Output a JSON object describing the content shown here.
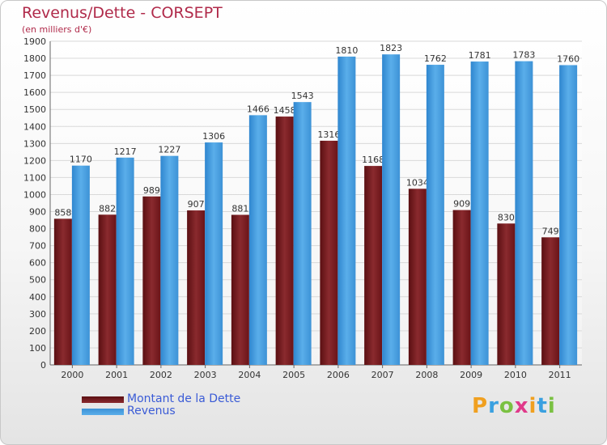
{
  "header": {
    "title": "Revenus/Dette - CORSEPT",
    "subtitle": "(en milliers d'€)"
  },
  "logo": {
    "letters": [
      "P",
      "r",
      "o",
      "x",
      "i",
      "t",
      "i"
    ],
    "colors": [
      "#f0a020",
      "#3aa0e0",
      "#7ac142",
      "#e03a8a",
      "#f0a020",
      "#3aa0e0",
      "#7ac142"
    ]
  },
  "chart_data": {
    "type": "bar",
    "title": "Revenus/Dette - CORSEPT",
    "subtitle": "(en milliers d'€)",
    "categories": [
      "2000",
      "2001",
      "2002",
      "2003",
      "2004",
      "2005",
      "2006",
      "2007",
      "2008",
      "2009",
      "2010",
      "2011"
    ],
    "series": [
      {
        "name": "Montant de la Dette",
        "color": "#7a1e22",
        "values": [
          858,
          882,
          989,
          907,
          881,
          1458,
          1316,
          1168,
          1034,
          909,
          830,
          749
        ]
      },
      {
        "name": "Revenus",
        "color": "#4aa3e6",
        "values": [
          1170,
          1217,
          1227,
          1306,
          1466,
          1543,
          1810,
          1823,
          1762,
          1781,
          1783,
          1760
        ]
      }
    ],
    "ylim": [
      0,
      1900
    ],
    "yticks": [
      0,
      100,
      200,
      300,
      400,
      500,
      600,
      700,
      800,
      900,
      1000,
      1100,
      1200,
      1300,
      1400,
      1500,
      1600,
      1700,
      1800,
      1900
    ],
    "grid": true,
    "legend": "bottom-left"
  }
}
